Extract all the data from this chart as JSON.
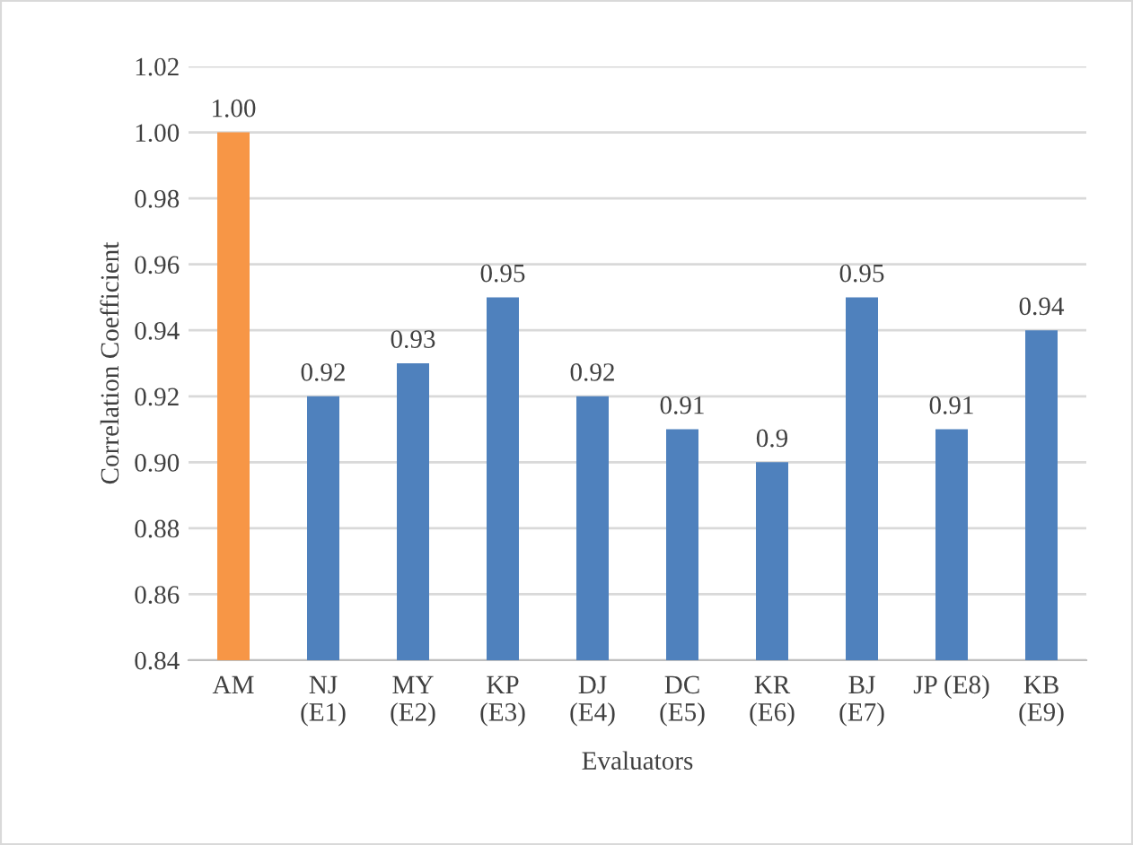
{
  "chart_data": {
    "type": "bar",
    "ylabel": "Correlation Coefficient",
    "xlabel": "Evaluators",
    "categories": [
      "AM",
      "NJ\n(E1)",
      "MY\n(E2)",
      "KP\n(E3)",
      "DJ\n(E4)",
      "DC\n(E5)",
      "KR\n(E6)",
      "BJ\n(E7)",
      "JP (E8)",
      "KB\n(E9)"
    ],
    "values": [
      1.0,
      0.92,
      0.93,
      0.95,
      0.92,
      0.91,
      0.9,
      0.95,
      0.91,
      0.94
    ],
    "value_labels": [
      "1.00",
      "0.92",
      "0.93",
      "0.95",
      "0.92",
      "0.91",
      "0.9",
      "0.95",
      "0.91",
      "0.94"
    ],
    "colors": [
      "#f79646",
      "#4f81bd",
      "#4f81bd",
      "#4f81bd",
      "#4f81bd",
      "#4f81bd",
      "#4f81bd",
      "#4f81bd",
      "#4f81bd",
      "#4f81bd"
    ],
    "ylim": [
      0.84,
      1.02
    ],
    "yticks": [
      0.84,
      0.86,
      0.88,
      {
        "value": 0.9,
        "label": "0.90"
      },
      0.92,
      0.94,
      0.96,
      0.98,
      {
        "value": 1.0,
        "label": "1.00"
      },
      1.02
    ],
    "grid": "y",
    "legend": false
  }
}
